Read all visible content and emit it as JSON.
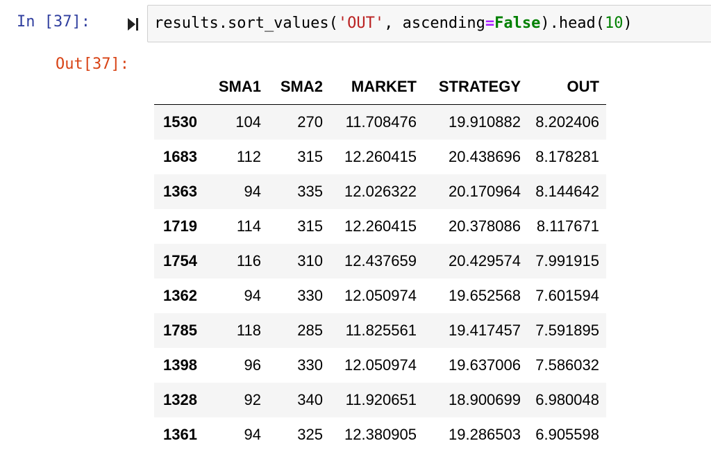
{
  "input_cell": {
    "prompt": "In [37]:",
    "code_tokens": [
      {
        "text": "results.sort_values(",
        "cls": ""
      },
      {
        "text": "'OUT'",
        "cls": "tok-str"
      },
      {
        "text": ", ascending",
        "cls": ""
      },
      {
        "text": "=",
        "cls": "tok-op"
      },
      {
        "text": "False",
        "cls": "tok-kw"
      },
      {
        "text": ").head(",
        "cls": ""
      },
      {
        "text": "10",
        "cls": "tok-num"
      },
      {
        "text": ")",
        "cls": ""
      }
    ],
    "run_icon": "step-run-icon"
  },
  "output_cell": {
    "prompt": "Out[37]:"
  },
  "table": {
    "columns": [
      "",
      "SMA1",
      "SMA2",
      "MARKET",
      "STRATEGY",
      "OUT"
    ],
    "rows": [
      {
        "index": "1530",
        "values": [
          "104",
          "270",
          "11.708476",
          "19.910882",
          "8.202406"
        ]
      },
      {
        "index": "1683",
        "values": [
          "112",
          "315",
          "12.260415",
          "20.438696",
          "8.178281"
        ]
      },
      {
        "index": "1363",
        "values": [
          "94",
          "335",
          "12.026322",
          "20.170964",
          "8.144642"
        ]
      },
      {
        "index": "1719",
        "values": [
          "114",
          "315",
          "12.260415",
          "20.378086",
          "8.117671"
        ]
      },
      {
        "index": "1754",
        "values": [
          "116",
          "310",
          "12.437659",
          "20.429574",
          "7.991915"
        ]
      },
      {
        "index": "1362",
        "values": [
          "94",
          "330",
          "12.050974",
          "19.652568",
          "7.601594"
        ]
      },
      {
        "index": "1785",
        "values": [
          "118",
          "285",
          "11.825561",
          "19.417457",
          "7.591895"
        ]
      },
      {
        "index": "1398",
        "values": [
          "96",
          "330",
          "12.050974",
          "19.637006",
          "7.586032"
        ]
      },
      {
        "index": "1328",
        "values": [
          "92",
          "340",
          "11.920651",
          "18.900699",
          "6.980048"
        ]
      },
      {
        "index": "1361",
        "values": [
          "94",
          "325",
          "12.380905",
          "19.286503",
          "6.905598"
        ]
      }
    ]
  },
  "colors": {
    "in_prompt": "#303f9f",
    "out_prompt": "#d84315",
    "string": "#ba2121",
    "operator": "#aa22ff",
    "keyword": "#008000",
    "number": "#008000",
    "input_bg": "#f7f7f7",
    "input_border": "#cfcfcf",
    "row_stripe": "#f5f5f5"
  }
}
